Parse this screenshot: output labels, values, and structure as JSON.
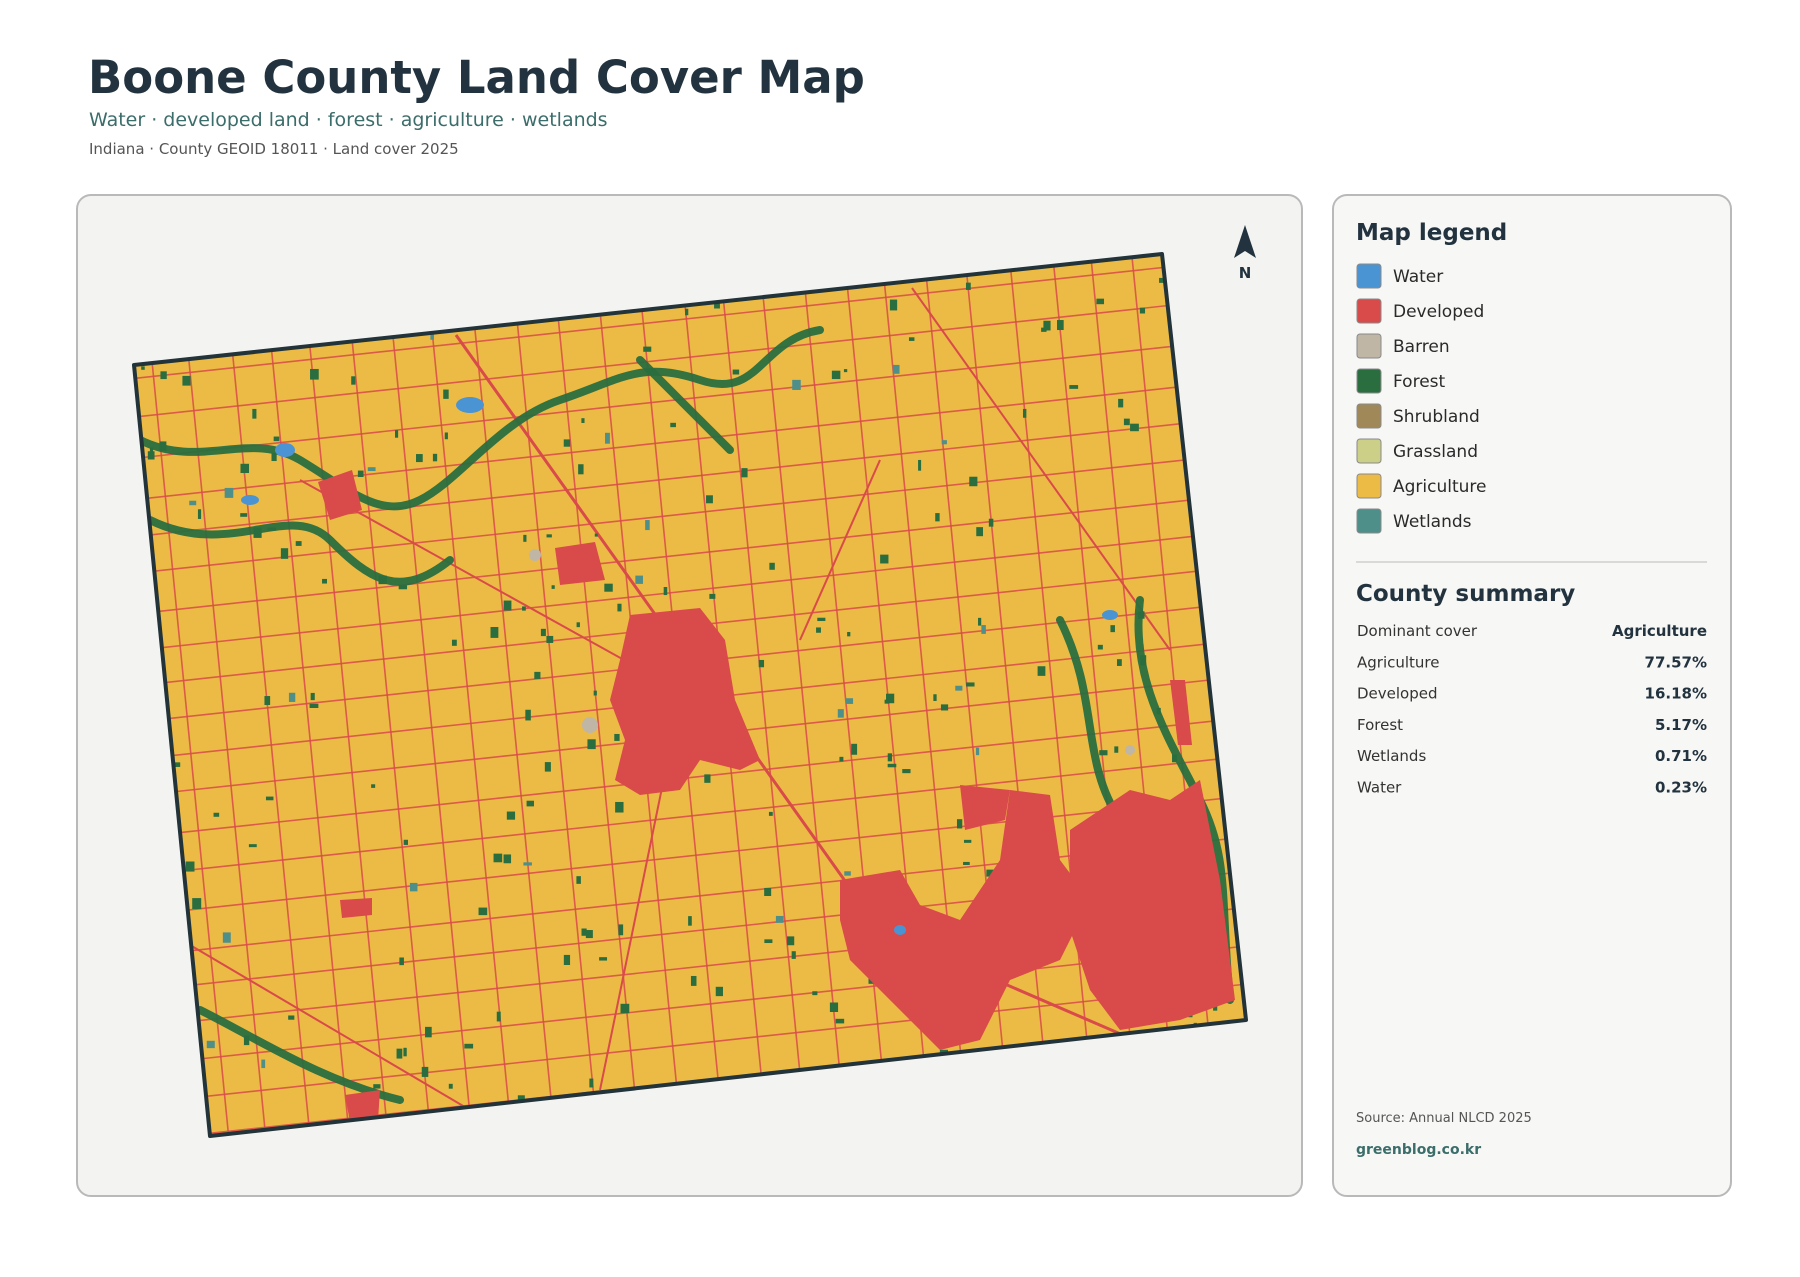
{
  "header": {
    "title": "Boone County Land Cover Map",
    "subtitle": "Water · developed land · forest · agriculture · wetlands",
    "meta": "Indiana · County GEOID 18011 · Land cover 2025"
  },
  "map": {
    "north_label": "N"
  },
  "legend": {
    "title": "Map legend",
    "items": [
      {
        "label": "Water",
        "color": "#4a94d4"
      },
      {
        "label": "Developed",
        "color": "#d94a4a"
      },
      {
        "label": "Barren",
        "color": "#bfb6a6"
      },
      {
        "label": "Forest",
        "color": "#2a6e3f"
      },
      {
        "label": "Shrubland",
        "color": "#a08858"
      },
      {
        "label": "Grassland",
        "color": "#cccf88"
      },
      {
        "label": "Agriculture",
        "color": "#ecbb45"
      },
      {
        "label": "Wetlands",
        "color": "#4f8f8a"
      }
    ]
  },
  "summary": {
    "title": "County summary",
    "rows": [
      [
        "Dominant cover",
        "Agriculture"
      ],
      [
        "Agriculture",
        "77.57%"
      ],
      [
        "Developed",
        "16.18%"
      ],
      [
        "Forest",
        "5.17%"
      ],
      [
        "Wetlands",
        "0.71%"
      ],
      [
        "Water",
        "0.23%"
      ]
    ]
  },
  "footer": {
    "source": "Source: Annual NLCD 2025",
    "site": "greenblog.co.kr"
  }
}
